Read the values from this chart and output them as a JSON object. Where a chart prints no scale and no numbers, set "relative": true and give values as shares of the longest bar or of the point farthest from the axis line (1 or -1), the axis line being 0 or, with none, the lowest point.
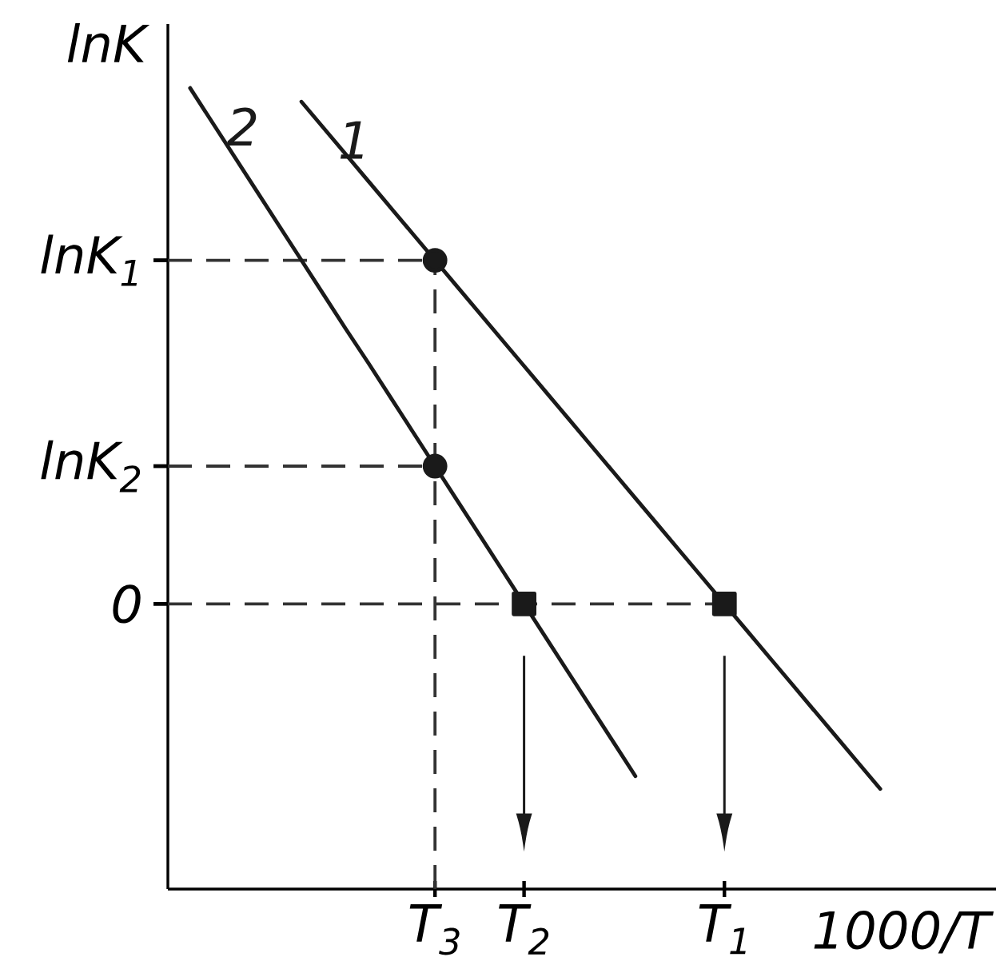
{
  "chart_data": {
    "type": "line",
    "xlabel": "1000/T",
    "ylabel": "lnK",
    "relative": true,
    "categories": [
      null,
      null,
      null,
      null,
      null,
      null,
      null,
      null,
      null,
      null,
      null,
      null,
      "T$_{3}$",
      null,
      null,
      null,
      "T$_{2}$",
      null,
      null,
      null,
      null,
      null,
      null,
      null,
      null,
      "T$_{1}$",
      null,
      null,
      null,
      null,
      null,
      null,
      null,
      null,
      null,
      null,
      null,
      null
    ],
    "series": [
      {
        "name": "1",
        "color": "#1a1a1a",
        "values": [
          null,
          null,
          null,
          null,
          null,
          null,
          0.983,
          0.95,
          0.917,
          0.884,
          0.851,
          0.818,
          0.785,
          0.752,
          0.719,
          0.686,
          0.653,
          0.62,
          0.587,
          0.554,
          0.521,
          0.488,
          0.455,
          0.422,
          0.389,
          0.356,
          0.323,
          0.29,
          0.257,
          0.224,
          0.191,
          0.158,
          0.125,
          null,
          null,
          null,
          null,
          null
        ]
      },
      {
        "name": "2",
        "color": "#1a1a1a",
        "values": [
          null,
          1.0,
          0.957,
          0.914,
          0.871,
          0.828,
          0.785,
          0.742,
          0.699,
          0.657,
          0.614,
          0.571,
          0.528,
          0.485,
          0.442,
          0.399,
          0.356,
          0.313,
          0.27,
          0.227,
          0.184,
          0.141,
          null,
          null,
          null,
          null,
          null,
          null,
          null,
          null,
          null,
          null,
          null,
          null,
          null,
          null,
          null,
          null
        ]
      },
      {
        "type": "scatter",
        "marker": "circle",
        "color": "#1a1a1a",
        "values": [
          null,
          null,
          null,
          null,
          null,
          null,
          null,
          null,
          null,
          null,
          null,
          null,
          0.785,
          null,
          null,
          null,
          null,
          null,
          null,
          null,
          null,
          null,
          null,
          null,
          null,
          null,
          null,
          null,
          null,
          null,
          null,
          null,
          null,
          null,
          null,
          null,
          null,
          null
        ]
      },
      {
        "type": "scatter",
        "marker": "circle",
        "color": "#1a1a1a",
        "values": [
          null,
          null,
          null,
          null,
          null,
          null,
          null,
          null,
          null,
          null,
          null,
          null,
          0.528,
          null,
          null,
          null,
          null,
          null,
          null,
          null,
          null,
          null,
          null,
          null,
          null,
          null,
          null,
          null,
          null,
          null,
          null,
          null,
          null,
          null,
          null,
          null,
          null,
          null
        ]
      },
      {
        "type": "scatter",
        "marker": "square",
        "color": "#1a1a1a",
        "values": [
          null,
          null,
          null,
          null,
          null,
          null,
          null,
          null,
          null,
          null,
          null,
          null,
          null,
          null,
          null,
          null,
          0.356,
          null,
          null,
          null,
          null,
          null,
          null,
          null,
          null,
          0.356,
          null,
          null,
          null,
          null,
          null,
          null,
          null,
          null,
          null,
          null,
          null,
          null
        ]
      }
    ],
    "ref_lines": [
      {
        "axis": "y",
        "value": 0.785,
        "label": "lnK$_{1}$",
        "color": "#333333",
        "line_style": "dashed"
      },
      {
        "axis": "y",
        "value": 0.528,
        "label": "lnK$_{2}$",
        "color": "#333333",
        "line_style": "dashed"
      },
      {
        "axis": "y",
        "value": 0.356,
        "label": "0",
        "color": "#333333",
        "line_style": "dashed"
      },
      {
        "axis": "x",
        "value": "T$_{3}$",
        "color": "#333333",
        "line_style": "dashed"
      }
    ]
  }
}
